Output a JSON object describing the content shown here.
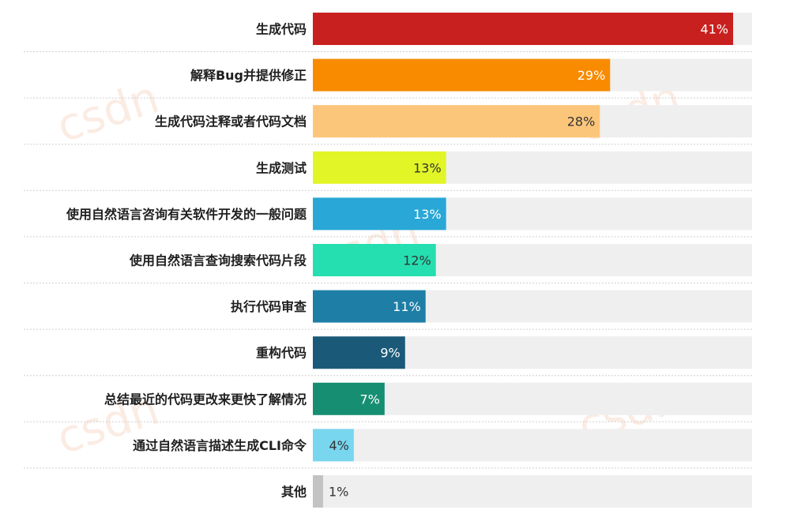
{
  "chart_data": {
    "type": "bar",
    "orientation": "horizontal",
    "categories": [
      "生成代码",
      "解释Bug并提供修正",
      "生成代码注释或者代码文档",
      "生成测试",
      "使用自然语言咨询有关软件开发的一般问题",
      "使用自然语言查询搜索代码片段",
      "执行代码审查",
      "重构代码",
      "总结最近的代码更改来更快了解情况",
      "通过自然语言描述生成CLI命令",
      "其他"
    ],
    "values": [
      41,
      29,
      28,
      13,
      13,
      12,
      11,
      9,
      7,
      4,
      1
    ],
    "value_labels": [
      "41%",
      "29%",
      "28%",
      "13%",
      "13%",
      "12%",
      "11%",
      "9%",
      "7%",
      "4%",
      "1%"
    ],
    "unit": "%",
    "xlim": [
      0,
      45
    ],
    "bar_colors": [
      "#c8201e",
      "#f98b00",
      "#fcc67a",
      "#e2f527",
      "#29a7d6",
      "#25dfb0",
      "#1e7ea6",
      "#1a5a78",
      "#168e72",
      "#78d6ef",
      "#c3c3c3"
    ],
    "value_label_colors": [
      "#ffffff",
      "#ffffff",
      "#333333",
      "#333333",
      "#ffffff",
      "#333333",
      "#ffffff",
      "#ffffff",
      "#ffffff",
      "#333333",
      "#333333"
    ],
    "track_color": "#efefef",
    "grid": false,
    "legend": "none"
  }
}
